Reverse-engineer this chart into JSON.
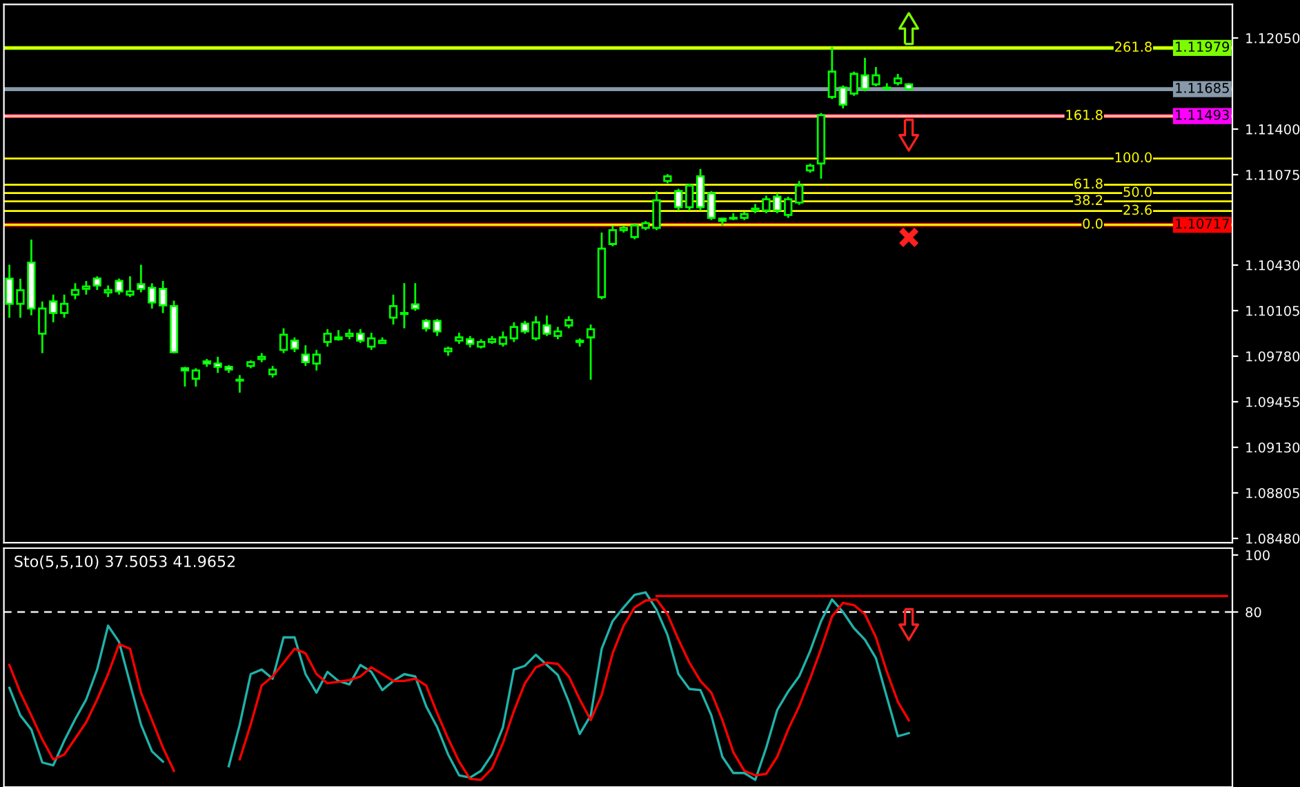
{
  "chart_data": [
    {
      "type": "candlestick",
      "color": "#00ff00",
      "categories": [
        null,
        null,
        null,
        null,
        null,
        null,
        null,
        null,
        null,
        null,
        null,
        null,
        null,
        null,
        null,
        null,
        null,
        null,
        null,
        null,
        null,
        null,
        null,
        null,
        null,
        null,
        null,
        null,
        null,
        null,
        null,
        null,
        null,
        null,
        null,
        null,
        null,
        null,
        null,
        null,
        null,
        null,
        null,
        null,
        null,
        null,
        null,
        null,
        null,
        null,
        null,
        null,
        null,
        null,
        null,
        null,
        null,
        null,
        null,
        null,
        null,
        null,
        null,
        null,
        null,
        null,
        null,
        null,
        null,
        null,
        null,
        null,
        null,
        null,
        null,
        null,
        null,
        null,
        null,
        null,
        null,
        null,
        null,
        null,
        null,
        null,
        null,
        null,
        null,
        null,
        null,
        null,
        null,
        null,
        null,
        null,
        null,
        null,
        null,
        null,
        null,
        null,
        null,
        null,
        null,
        null,
        null,
        null,
        null,
        null,
        null,
        null
      ],
      "ohlc": [
        [
          1.10333,
          1.10432,
          1.10054,
          1.10153
        ],
        [
          1.10153,
          1.10333,
          1.10054,
          1.10251
        ],
        [
          1.10448,
          1.10612,
          1.10071,
          1.1012
        ],
        [
          1.0994,
          1.1017,
          1.09802,
          1.1012
        ],
        [
          1.1017,
          1.10219,
          1.10022,
          1.10088
        ],
        [
          1.10088,
          1.10219,
          1.10054,
          1.10153
        ],
        [
          1.10219,
          1.10301,
          1.10186,
          1.10252
        ],
        [
          1.10261,
          1.10317,
          1.10219,
          1.10278
        ],
        [
          1.10334,
          1.1035,
          1.10252,
          1.10284
        ],
        [
          1.10235,
          1.10284,
          1.10202,
          1.10252
        ],
        [
          1.10317,
          1.10334,
          1.10219,
          1.10242
        ],
        [
          1.10219,
          1.1035,
          1.10202,
          1.10242
        ],
        [
          1.10294,
          1.10432,
          1.10235,
          1.10261
        ],
        [
          1.10268,
          1.10301,
          1.1012,
          1.10163
        ],
        [
          1.10261,
          1.10317,
          1.10088,
          1.10143
        ],
        [
          1.10137,
          1.10176,
          1.09802,
          1.09809
        ],
        [
          1.09694,
          1.09704,
          1.09563,
          1.09678
        ],
        [
          1.09619,
          1.09694,
          1.09563,
          1.09678
        ],
        [
          1.09743,
          1.0976,
          1.09704,
          1.09727
        ],
        [
          1.09727,
          1.09776,
          1.09661,
          1.09704
        ],
        [
          1.09704,
          1.09717,
          1.09661,
          1.09684
        ],
        [
          1.09606,
          1.09645,
          1.0952,
          1.09612
        ],
        [
          1.0971,
          1.0975,
          1.09694,
          1.09737
        ],
        [
          1.0976,
          1.09802,
          1.09737,
          1.09776
        ],
        [
          1.09651,
          1.0971,
          1.09628,
          1.09684
        ],
        [
          1.09825,
          1.09979,
          1.09802,
          1.09933
        ],
        [
          1.09891,
          1.09914,
          1.09809,
          1.09835
        ],
        [
          1.09792,
          1.09858,
          1.0971,
          1.09737
        ],
        [
          1.09727,
          1.09825,
          1.09678,
          1.09792
        ],
        [
          1.09881,
          1.09973,
          1.09848,
          1.0994
        ],
        [
          1.09901,
          1.09966,
          1.09891,
          1.09914
        ],
        [
          1.09924,
          1.09973,
          1.09901,
          1.0994
        ],
        [
          1.0994,
          1.09973,
          1.09874,
          1.09891
        ],
        [
          1.09848,
          1.09947,
          1.09825,
          1.09907
        ],
        [
          1.09874,
          1.09914,
          1.09868,
          1.09891
        ],
        [
          1.10055,
          1.10219,
          1.10006,
          1.10137
        ],
        [
          1.10081,
          1.10301,
          1.09979,
          1.10088
        ],
        [
          1.1015,
          1.10301,
          1.10104,
          1.1012
        ],
        [
          1.10032,
          1.10045,
          1.09956,
          1.09979
        ],
        [
          1.10032,
          1.10045,
          1.09924,
          1.09956
        ],
        [
          1.09815,
          1.09848,
          1.09783,
          1.09835
        ],
        [
          1.09891,
          1.09947,
          1.09868,
          1.09914
        ],
        [
          1.09901,
          1.09924,
          1.09842,
          1.09868
        ],
        [
          1.09848,
          1.09901,
          1.09835,
          1.09881
        ],
        [
          1.09881,
          1.09924,
          1.09868,
          1.09901
        ],
        [
          1.09868,
          1.09956,
          1.09848,
          1.09914
        ],
        [
          1.09907,
          1.10022,
          1.09881,
          1.09989
        ],
        [
          1.10012,
          1.10032,
          1.0994,
          1.09956
        ],
        [
          1.09907,
          1.10065,
          1.09891,
          1.10022
        ],
        [
          1.09999,
          1.10071,
          1.09924,
          1.0994
        ],
        [
          1.09924,
          1.09989,
          1.09901,
          1.09956
        ],
        [
          1.09999,
          1.10065,
          1.09979,
          1.10038
        ],
        [
          1.09881,
          1.09907,
          1.09848,
          1.09891
        ],
        [
          1.09914,
          1.10006,
          1.09612,
          1.09973
        ],
        [
          1.10202,
          1.10662,
          1.10186,
          1.10547
        ],
        [
          1.1058,
          1.10712,
          1.10564,
          1.10679
        ],
        [
          1.10679,
          1.10712,
          1.10662,
          1.10695
        ],
        [
          1.1063,
          1.10728,
          1.10614,
          1.10712
        ],
        [
          1.10695,
          1.10744,
          1.10679,
          1.10728
        ],
        [
          1.10695,
          1.10958,
          1.10679,
          1.10892
        ],
        [
          1.1103,
          1.11079,
          1.11014,
          1.11063
        ],
        [
          1.10958,
          1.10974,
          1.1082,
          1.10843
        ],
        [
          1.10843,
          1.1101,
          1.1082,
          1.10997
        ],
        [
          1.11063,
          1.11115,
          1.1082,
          1.10843
        ],
        [
          1.10941,
          1.10958,
          1.10751,
          1.10767
        ],
        [
          1.10761,
          1.10767,
          1.10712,
          1.10744
        ],
        [
          1.10761,
          1.108,
          1.10751,
          1.10767
        ],
        [
          1.10767,
          1.1081,
          1.10751,
          1.10794
        ],
        [
          1.1082,
          1.10866,
          1.108,
          1.10833
        ],
        [
          1.1082,
          1.10925,
          1.108,
          1.10899
        ],
        [
          1.10918,
          1.10941,
          1.108,
          1.1082
        ],
        [
          1.10787,
          1.10918,
          1.10767,
          1.10899
        ],
        [
          1.10876,
          1.1103,
          1.1086,
          1.10997
        ],
        [
          1.11105,
          1.11154,
          1.11089,
          1.11138
        ],
        [
          1.11154,
          1.11515,
          1.11046,
          1.11499
        ],
        [
          1.1163,
          1.11985,
          1.11614,
          1.1181
        ],
        [
          1.11696,
          1.11712,
          1.11548,
          1.11574
        ],
        [
          1.11653,
          1.1181,
          1.11637,
          1.11794
        ],
        [
          1.11784,
          1.11909,
          1.1167,
          1.11686
        ],
        [
          1.11719,
          1.11843,
          1.11705,
          1.11784
        ],
        [
          1.11696,
          1.11728,
          1.11679,
          1.11686
        ],
        [
          1.11728,
          1.11794,
          1.11712,
          1.11761
        ],
        [
          1.11719,
          1.11728,
          1.11679,
          1.11685
        ],
        null,
        null,
        null,
        null,
        null,
        null,
        null,
        null,
        null,
        null,
        null,
        null,
        null,
        null,
        null,
        null,
        null,
        null,
        null,
        null,
        null,
        null,
        null,
        null,
        null,
        null,
        null,
        null,
        null
      ],
      "ylim": [
        1.0845,
        1.1229
      ],
      "yticks": [
        {
          "value": 1.1205,
          "label": "1.12050"
        },
        {
          "value": 1.114,
          "label": "1.11400"
        },
        {
          "value": 1.11075,
          "label": "1.11075"
        },
        {
          "value": 1.1043,
          "label": "1.10430"
        },
        {
          "value": 1.10105,
          "label": "1.10105"
        },
        {
          "value": 1.0978,
          "label": "1.09780"
        },
        {
          "value": 1.09455,
          "label": "1.09455"
        },
        {
          "value": 1.0913,
          "label": "1.09130"
        },
        {
          "value": 1.08805,
          "label": "1.08805"
        },
        {
          "value": 1.0848,
          "label": "1.08480"
        }
      ],
      "ref_lines": [
        {
          "axis": "y",
          "value": 1.11979,
          "label": "1.11979",
          "color": "#7cfc00"
        },
        {
          "axis": "y",
          "value": 1.11685,
          "label": "1.11685",
          "color": "#8899aa"
        },
        {
          "axis": "y",
          "value": 1.11493,
          "label": "1.11493",
          "color": "#ff00ff"
        },
        {
          "axis": "y",
          "value": 1.10717,
          "label": "1.10717",
          "color": "#ff0000"
        },
        {
          "axis": "y",
          "value": 1.11979,
          "color": "#ffff00"
        },
        {
          "axis": "y",
          "value": 1.11493,
          "color": "#ffff00"
        },
        {
          "axis": "y",
          "value": 1.1119,
          "color": "#ffff00"
        },
        {
          "axis": "y",
          "value": 1.11003,
          "color": "#ffff00"
        },
        {
          "axis": "y",
          "value": 1.10944,
          "color": "#ffff00"
        },
        {
          "axis": "y",
          "value": 1.10885,
          "color": "#ffff00"
        },
        {
          "axis": "y",
          "value": 1.10816,
          "color": "#ffff00"
        },
        {
          "axis": "y",
          "value": 1.10717,
          "color": "#ffff00"
        }
      ],
      "annotations": [
        {
          "text": "261.8",
          "y": 1.11979
        },
        {
          "text": "161.8",
          "y": 1.11493
        },
        {
          "text": "100.0",
          "y": 1.1119
        },
        {
          "text": "61.8",
          "y": 1.11003
        },
        {
          "text": "50.0",
          "y": 1.10944
        },
        {
          "text": "38.2",
          "y": 1.10885
        },
        {
          "text": "23.6",
          "y": 1.10816
        },
        {
          "text": "0.0",
          "y": 1.10717
        }
      ],
      "tick_labels": "y",
      "grid": false
    },
    {
      "type": "line",
      "categories": [
        null,
        null,
        null,
        null,
        null,
        null,
        null,
        null,
        null,
        null,
        null,
        null,
        null,
        null,
        null,
        null,
        null,
        null,
        null,
        null,
        null,
        null,
        null,
        null,
        null,
        null,
        null,
        null,
        null,
        null,
        null,
        null,
        null,
        null,
        null,
        null,
        null,
        null,
        null,
        null,
        null,
        null,
        null,
        null,
        null,
        null,
        null,
        null,
        null,
        null,
        null,
        null,
        null,
        null,
        null,
        null,
        null,
        null,
        null,
        null,
        null,
        null,
        null,
        null,
        null,
        null,
        null,
        null,
        null,
        null,
        null,
        null,
        null,
        null,
        null,
        null,
        null,
        null,
        null,
        null,
        null,
        null,
        null,
        null,
        null,
        null,
        null,
        null,
        null,
        null,
        null,
        null,
        null,
        null,
        null,
        null,
        null,
        null,
        null,
        null,
        null,
        null,
        null,
        null,
        null,
        null,
        null,
        null,
        null,
        null,
        null,
        null
      ],
      "series": [
        {
          "color": "#20b2aa",
          "values": [
            53.4,
            43.7,
            38.8,
            27.2,
            26.2,
            34.8,
            42.4,
            49.3,
            59.8,
            75.2,
            69.5,
            55.0,
            40.5,
            31.1,
            27.5,
            null,
            null,
            null,
            null,
            null,
            25.9,
            40.5,
            58.2,
            59.8,
            56.6,
            71.1,
            71.1,
            58.2,
            51.7,
            59.0,
            55.8,
            54.6,
            61.4,
            59.0,
            52.6,
            55.8,
            58.2,
            57.4,
            46.9,
            39.6,
            30.0,
            22.7,
            21.9,
            24.3,
            30.0,
            39.6,
            59.8,
            61.1,
            65.0,
            61.4,
            57.9,
            48.5,
            37.2,
            43.7,
            67.1,
            76.8,
            81.6,
            86.0,
            86.9,
            80.8,
            71.9,
            58.2,
            53.0,
            52.6,
            43.7,
            29.2,
            23.5,
            23.5,
            21.1,
            32.4,
            45.6,
            52.1,
            57.4,
            66.3,
            76.8,
            84.4,
            80.0,
            74.3,
            70.3,
            63.8,
            50.1,
            36.4,
            37.5,
            null,
            null,
            null,
            null,
            null,
            null,
            null,
            null,
            null,
            null,
            null,
            null,
            null,
            null,
            null,
            null,
            null,
            null,
            null,
            null,
            null,
            null,
            null,
            null,
            null,
            null,
            null,
            null,
            null
          ]
        },
        {
          "color": "#ff0000",
          "values": [
            61.4,
            51.7,
            43.7,
            35.3,
            28.3,
            30.0,
            35.6,
            41.3,
            49.3,
            58.2,
            68.7,
            67.1,
            51.7,
            42.1,
            32.4,
            24.3,
            null,
            null,
            null,
            null,
            null,
            28.3,
            40.5,
            54.2,
            57.4,
            62.2,
            67.1,
            65.5,
            58.2,
            55.0,
            55.5,
            56.1,
            57.4,
            60.6,
            58.2,
            55.8,
            55.8,
            56.6,
            54.2,
            44.5,
            35.6,
            27.5,
            21.4,
            21.1,
            25.1,
            34.0,
            45.3,
            55.0,
            60.6,
            62.2,
            61.8,
            57.4,
            49.3,
            42.1,
            50.9,
            65.5,
            75.2,
            81.6,
            84.0,
            84.4,
            79.2,
            70.3,
            62.2,
            55.8,
            51.7,
            42.1,
            30.8,
            24.3,
            22.7,
            23.2,
            29.2,
            38.8,
            46.9,
            56.6,
            67.1,
            78.4,
            83.2,
            82.4,
            79.2,
            71.1,
            59.0,
            48.5,
            42.0,
            null,
            null,
            null,
            null,
            null,
            null,
            null,
            null,
            null,
            null,
            null,
            null,
            null,
            null,
            null,
            null,
            null,
            null,
            null,
            null,
            null,
            null,
            null,
            null,
            null,
            null,
            null,
            null,
            null
          ]
        },
        {
          "color": "#ff0000",
          "values": [
            null,
            null,
            null,
            null,
            null,
            null,
            null,
            null,
            null,
            null,
            null,
            null,
            null,
            null,
            null,
            null,
            null,
            null,
            null,
            null,
            null,
            null,
            null,
            null,
            null,
            null,
            null,
            null,
            null,
            null,
            null,
            null,
            null,
            null,
            null,
            null,
            null,
            null,
            null,
            null,
            null,
            null,
            null,
            null,
            null,
            null,
            null,
            null,
            null,
            null,
            null,
            null,
            null,
            null,
            null,
            null,
            null,
            null,
            null,
            85.6,
            85.6,
            85.6,
            85.6,
            85.6,
            85.6,
            85.6,
            85.6,
            85.6,
            85.6,
            85.6,
            85.6,
            85.6,
            85.6,
            85.6,
            85.6,
            85.6,
            85.6,
            85.6,
            85.6,
            85.6,
            85.6,
            85.6,
            85.6,
            85.6,
            85.6,
            85.6,
            85.6,
            85.6,
            85.6,
            85.6,
            85.6,
            85.6,
            85.6,
            85.6,
            85.6,
            85.6,
            85.6,
            85.6,
            85.6,
            85.6,
            85.6,
            85.6,
            85.6,
            85.6,
            85.6,
            85.6,
            85.6,
            85.6,
            85.6,
            85.6,
            85.6,
            85.6
          ]
        }
      ],
      "ylim": [
        18.6,
        102.4
      ],
      "yticks": [
        100,
        80
      ],
      "ref_lines": [
        {
          "axis": "y",
          "value": 80,
          "color": "#c8c8c8",
          "line_style": "dashed"
        }
      ],
      "annotations": [
        "Sto(5,5,10) 37.5053 41.9652"
      ],
      "tick_labels": "y",
      "grid": false
    }
  ]
}
